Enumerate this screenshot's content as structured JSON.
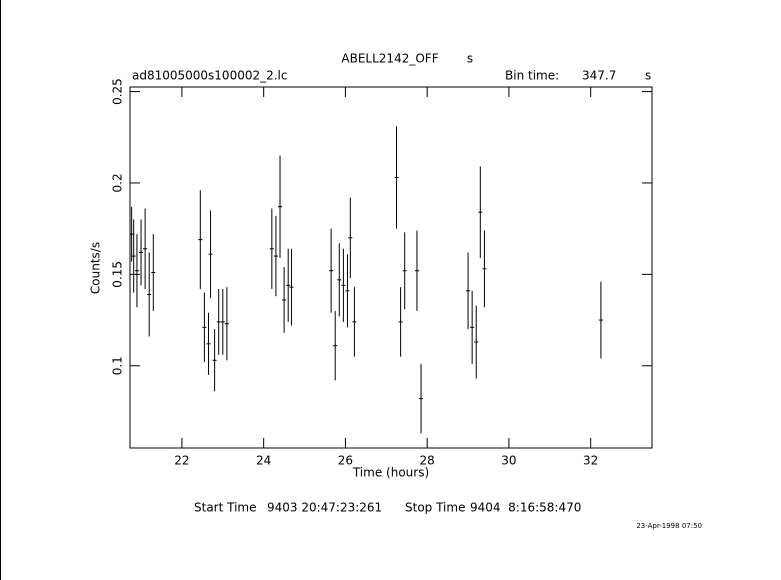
{
  "chart_data": {
    "type": "errorbar",
    "title": "ABELL2142_OFF",
    "title_unit": "s",
    "file_name": "ad81005000s100002_2.lc",
    "bin_time_label": "Bin time:",
    "bin_time": 347.7,
    "bin_time_unit": "s",
    "x_label": "Time (hours)",
    "y_label": "Counts/s",
    "start_time_label": "Start Time",
    "start_time": "9403 20:47:23:261",
    "stop_time_label": "Stop Time",
    "stop_time": "9404  8:16:58:470",
    "date_stamp": "23-Apr-1998 07:50",
    "color": "#000000",
    "x": [
      20.77,
      20.82,
      20.9,
      21.0,
      21.1,
      21.2,
      21.3,
      22.45,
      22.55,
      22.65,
      22.7,
      22.8,
      22.9,
      23.0,
      23.1,
      24.2,
      24.3,
      24.4,
      24.5,
      24.6,
      24.68,
      25.65,
      25.75,
      25.85,
      25.95,
      26.05,
      26.12,
      26.22,
      27.25,
      27.35,
      27.45,
      27.75,
      27.85,
      29.0,
      29.1,
      29.2,
      29.3,
      29.4,
      32.25
    ],
    "values": [
      0.172,
      0.16,
      0.152,
      0.162,
      0.164,
      0.139,
      0.151,
      0.169,
      0.121,
      0.112,
      0.161,
      0.103,
      0.124,
      0.124,
      0.123,
      0.164,
      0.16,
      0.187,
      0.136,
      0.144,
      0.143,
      0.152,
      0.111,
      0.147,
      0.144,
      0.141,
      0.17,
      0.124,
      0.203,
      0.124,
      0.152,
      0.152,
      0.082,
      0.141,
      0.121,
      0.113,
      0.184,
      0.153,
      0.125
    ],
    "errors": [
      0.015,
      0.02,
      0.02,
      0.018,
      0.022,
      0.023,
      0.021,
      0.027,
      0.019,
      0.017,
      0.024,
      0.017,
      0.018,
      0.018,
      0.02,
      0.022,
      0.022,
      0.028,
      0.018,
      0.02,
      0.021,
      0.023,
      0.019,
      0.02,
      0.02,
      0.02,
      0.022,
      0.019,
      0.028,
      0.019,
      0.021,
      0.022,
      0.019,
      0.021,
      0.02,
      0.02,
      0.025,
      0.021,
      0.021
    ],
    "xlim": [
      20.73,
      33.5
    ],
    "ylim": [
      0.055,
      0.2525
    ],
    "xticks": [
      22,
      24,
      26,
      28,
      30,
      32
    ],
    "yticks": [
      0.1,
      0.15,
      0.2,
      0.25
    ]
  }
}
